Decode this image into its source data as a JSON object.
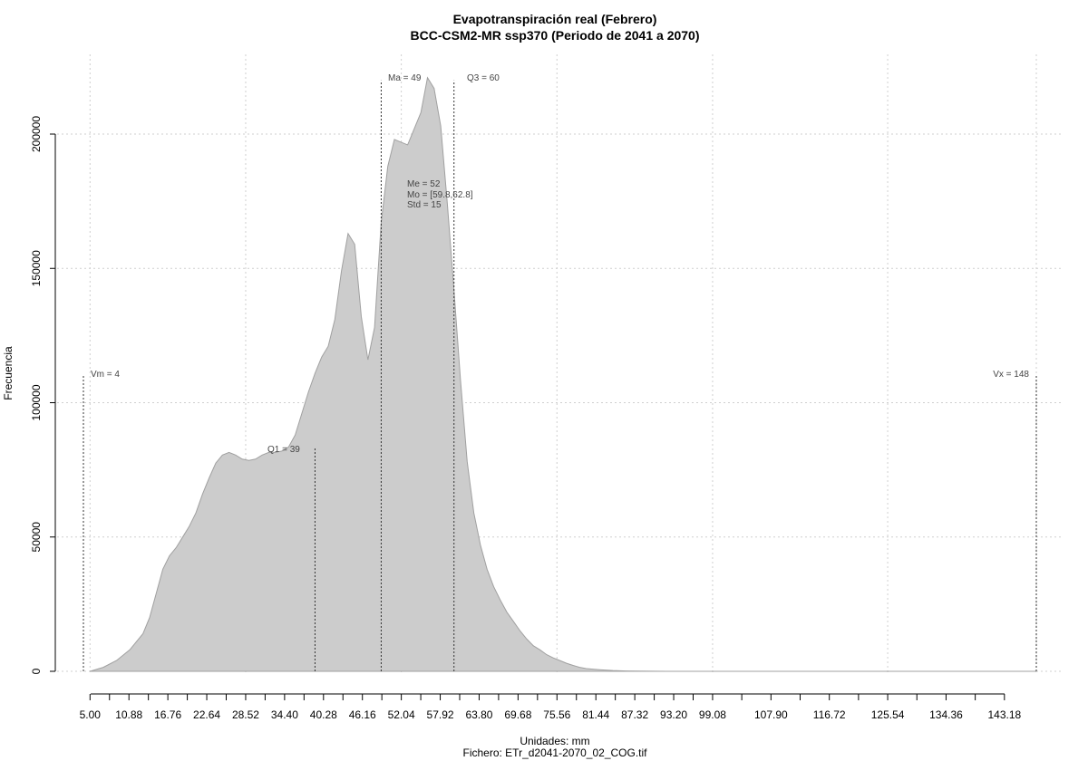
{
  "chart_data": {
    "type": "area",
    "title": "Evapotranspiración real (Febrero)",
    "subtitle": "BCC-CSM2-MR ssp370 (Periodo de 2041 a 2070)",
    "xlabel": "Unidades: mm",
    "caption": "Fichero: ETr_d2041-2070_02_COG.tif",
    "ylabel": "Frecuencia",
    "xlim": [
      2,
      150
    ],
    "ylim": [
      0,
      225000
    ],
    "grid": true,
    "fill_color": "#cccccc",
    "line_color": "#a0a0a0",
    "x_ticks": [
      "5.00",
      "10.88",
      "16.76",
      "22.64",
      "28.52",
      "34.40",
      "40.28",
      "46.16",
      "52.04",
      "57.92",
      "63.80",
      "69.68",
      "75.56",
      "81.44",
      "87.32",
      "93.20",
      "99.08",
      "107.90",
      "116.72",
      "125.54",
      "134.36",
      "143.18"
    ],
    "y_ticks": [
      "0",
      "50000",
      "100000",
      "150000",
      "200000"
    ],
    "series": [
      {
        "x": [
          5,
          7,
          9,
          11,
          13,
          14,
          15,
          16,
          17,
          18,
          19,
          20,
          21,
          22,
          23,
          24,
          25,
          26,
          27,
          28,
          29,
          30,
          31,
          32,
          33,
          34,
          35,
          36,
          37,
          38,
          39,
          40,
          41,
          42,
          43,
          44,
          45,
          46,
          47,
          48,
          49,
          50,
          51,
          52,
          53,
          54,
          55,
          56,
          57,
          58,
          59,
          60,
          61,
          62,
          63,
          64,
          65,
          66,
          67,
          68,
          69,
          70,
          71,
          72,
          73,
          74,
          75,
          76,
          77,
          78,
          79,
          80,
          82,
          84,
          86,
          88,
          90,
          92,
          94,
          96,
          98,
          100,
          110,
          120,
          130,
          140,
          148
        ],
        "y": [
          0,
          1500,
          4000,
          8000,
          14000,
          20000,
          29000,
          38000,
          43000,
          46000,
          50000,
          54000,
          59000,
          66000,
          72000,
          77500,
          80500,
          81500,
          80500,
          79000,
          78500,
          79000,
          80500,
          81500,
          81500,
          82000,
          83500,
          88000,
          96000,
          104000,
          111000,
          117000,
          121000,
          131000,
          149000,
          163000,
          159000,
          132000,
          116000,
          128000,
          167000,
          188000,
          198000,
          197000,
          196000,
          202000,
          208000,
          221000,
          217000,
          203000,
          174000,
          142000,
          108000,
          78000,
          59000,
          47000,
          38000,
          31500,
          26500,
          22000,
          18500,
          15000,
          12000,
          9500,
          8000,
          6200,
          5000,
          4000,
          3000,
          2200,
          1500,
          1000,
          600,
          300,
          150,
          60,
          30,
          10,
          0,
          0,
          0,
          0,
          0,
          0,
          0,
          0,
          0
        ]
      }
    ],
    "annotations": {
      "vm": "Vm = 4",
      "q1": "Q1 = 39",
      "ma": "Ma = 49",
      "q3": "Q3 = 60",
      "vx": "Vx = 148",
      "me": "Me = 52",
      "mo": "Mo = [59.8,62.8]",
      "std": "Std = 15"
    },
    "marker_values": {
      "vm": 4,
      "q1": 39,
      "ma": 49,
      "q3": 60,
      "vx": 148
    },
    "marker_heights": {
      "vm": 110000,
      "q1": 83000,
      "ma": 220000,
      "q3": 220000,
      "vx": 110000
    }
  }
}
